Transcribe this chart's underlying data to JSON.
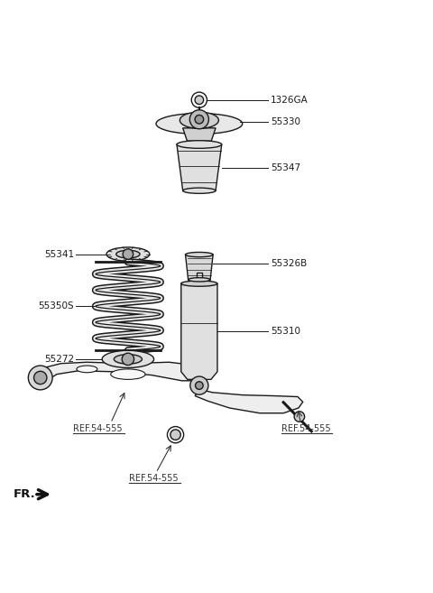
{
  "bg_color": "#ffffff",
  "line_color": "#1a1a1a",
  "label_color": "#1a1a1a",
  "ref_color": "#333333",
  "parts": {
    "bolt_1326GA": {
      "label": "1326GA"
    },
    "mount_55330": {
      "label": "55330"
    },
    "bump_55347": {
      "label": "55347"
    },
    "seat_55341": {
      "label": "55341"
    },
    "bump2_55326B": {
      "label": "55326B"
    },
    "spring_55350S": {
      "label": "55350S"
    },
    "insulator_55272": {
      "label": "55272"
    },
    "shock_55310": {
      "label": "55310"
    },
    "ref1": {
      "label": "REF.54-555"
    },
    "ref2": {
      "label": "REF.54-555"
    },
    "ref3": {
      "label": "REF.54-555"
    },
    "fr_label": {
      "label": "FR."
    }
  }
}
